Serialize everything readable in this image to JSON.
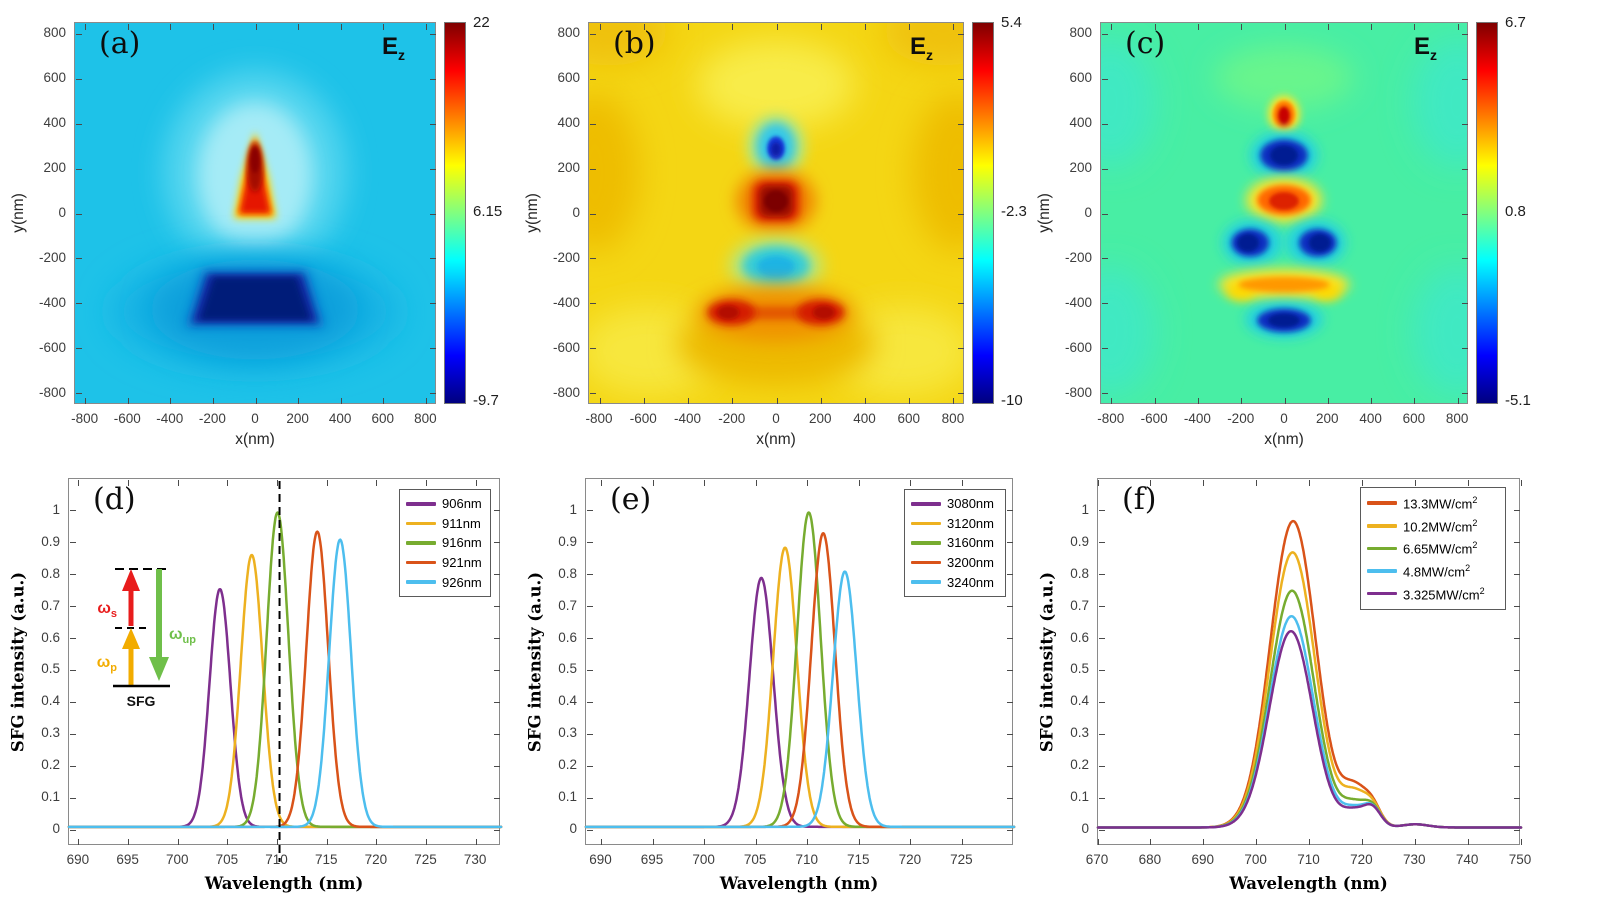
{
  "chart_data": [
    {
      "id": "a",
      "type": "heatmap",
      "letter": "(a)",
      "field": {
        "base": "E",
        "sub": "z"
      },
      "xlabel": "x(nm)",
      "ylabel": "y(nm)",
      "xlim": [
        -850,
        850
      ],
      "ylim": [
        -850,
        850
      ],
      "xticks": [
        -800,
        -600,
        -400,
        -200,
        0,
        200,
        400,
        600,
        800
      ],
      "yticks": [
        800,
        600,
        400,
        200,
        0,
        -200,
        -400,
        -600,
        -800
      ],
      "colorbar": {
        "max": "22",
        "mid": "6.15",
        "min": "-9.7"
      },
      "colormap": "jet",
      "background_color": "#1ec2e8",
      "features": [
        "strong positive (red) tip-shaped lobe centered at x=0 from y=0 to y=350",
        "strong negative (dark blue) trapezoidal lobe centered at x=0 from y=-260 to y=-500",
        "uniform cyan background near field value 0"
      ]
    },
    {
      "id": "b",
      "type": "heatmap",
      "letter": "(b)",
      "field": {
        "base": "E",
        "sub": "z"
      },
      "xlabel": "x(nm)",
      "ylabel": "y(nm)",
      "xlim": [
        -850,
        850
      ],
      "ylim": [
        -850,
        850
      ],
      "xticks": [
        -800,
        -600,
        -400,
        -200,
        0,
        200,
        400,
        600,
        800
      ],
      "yticks": [
        800,
        600,
        400,
        200,
        0,
        -200,
        -400,
        -600,
        -800
      ],
      "colorbar": {
        "max": "5.4",
        "mid": "-2.3",
        "min": "-10"
      },
      "colormap": "jet",
      "background_color": "#f4d614",
      "features": [
        "small negative (blue) spot near (0, 300)",
        "strong positive (dark red) lobe near (0, 50)",
        "negative (cyan) lobe near (0, -230)",
        "positive (red) bow-tie pair near (-200, -450) and (200, -450)",
        "yellow background"
      ]
    },
    {
      "id": "c",
      "type": "heatmap",
      "letter": "(c)",
      "field": {
        "base": "E",
        "sub": "z"
      },
      "xlabel": "x(nm)",
      "ylabel": "y(nm)",
      "xlim": [
        -850,
        850
      ],
      "ylim": [
        -850,
        850
      ],
      "xticks": [
        -800,
        -600,
        -400,
        -200,
        0,
        200,
        400,
        600,
        800
      ],
      "yticks": [
        800,
        600,
        400,
        200,
        0,
        -200,
        -400,
        -600,
        -800
      ],
      "colorbar": {
        "max": "6.7",
        "mid": "0.8",
        "min": "-5.1"
      },
      "colormap": "jet",
      "background_color": "#48eea4",
      "features": [
        "small positive (red) spot near (0, 440)",
        "negative (blue) lobe near (0, 260)",
        "positive (orange-red) lobe near (0, 60)",
        "two negative (blue) lobes near (-150, -130) and (150, -130)",
        "positive (yellow-orange) band near (0, -320)",
        "negative (blue) lobe near (0, -480)",
        "green background"
      ]
    },
    {
      "id": "d",
      "type": "line",
      "letter": "(d)",
      "xlabel": "Wavelength (nm)",
      "ylabel": "SFG intensity (a.u.)",
      "xlim": [
        689,
        732.5
      ],
      "ylim": [
        -0.05,
        1.1
      ],
      "xticks": [
        690,
        695,
        700,
        705,
        710,
        715,
        720,
        725,
        730
      ],
      "yticks": [
        0,
        0.1,
        0.2,
        0.3,
        0.4,
        0.5,
        0.6,
        0.7,
        0.8,
        0.9,
        1
      ],
      "dashed_x": 710.2,
      "baseline": 0.01,
      "legend_position": "top-right",
      "series": [
        {
          "name": "906nm",
          "sup": "",
          "color": "#7E2F8E",
          "peaks": [
            {
              "c": 704.2,
              "h": 0.745,
              "w": 1.05
            }
          ]
        },
        {
          "name": "911nm",
          "sup": "",
          "color": "#EDB120",
          "peaks": [
            {
              "c": 707.4,
              "h": 0.852,
              "w": 1.1
            }
          ]
        },
        {
          "name": "916nm",
          "sup": "",
          "color": "#77AC30",
          "peaks": [
            {
              "c": 710.0,
              "h": 0.985,
              "w": 1.1
            }
          ]
        },
        {
          "name": "921nm",
          "sup": "",
          "color": "#D95319",
          "peaks": [
            {
              "c": 714.0,
              "h": 0.925,
              "w": 1.1
            }
          ]
        },
        {
          "name": "926nm",
          "sup": "",
          "color": "#4DBEEE",
          "peaks": [
            {
              "c": 716.3,
              "h": 0.9,
              "w": 1.1
            }
          ]
        }
      ],
      "inset": {
        "ws": {
          "base": "ω",
          "sub": "s"
        },
        "wp": {
          "base": "ω",
          "sub": "p"
        },
        "wup": {
          "base": "ω",
          "sub": "up"
        },
        "sfg": "SFG",
        "colors": {
          "ws": "#e81c1c",
          "wp": "#f2ac00",
          "wup": "#6fbf4a"
        }
      }
    },
    {
      "id": "e",
      "type": "line",
      "letter": "(e)",
      "xlabel": "Wavelength (nm)",
      "ylabel": "SFG intensity (a.u.)",
      "xlim": [
        688.5,
        730
      ],
      "ylim": [
        -0.05,
        1.1
      ],
      "xticks": [
        690,
        695,
        700,
        705,
        710,
        715,
        720,
        725
      ],
      "yticks": [
        0,
        0.1,
        0.2,
        0.3,
        0.4,
        0.5,
        0.6,
        0.7,
        0.8,
        0.9,
        1
      ],
      "baseline": 0.01,
      "legend_position": "top-right",
      "series": [
        {
          "name": "3080nm",
          "sup": "",
          "color": "#7E2F8E",
          "peaks": [
            {
              "c": 705.5,
              "h": 0.78,
              "w": 1.15
            }
          ]
        },
        {
          "name": "3120nm",
          "sup": "",
          "color": "#EDB120",
          "peaks": [
            {
              "c": 707.8,
              "h": 0.875,
              "w": 1.15
            }
          ]
        },
        {
          "name": "3160nm",
          "sup": "",
          "color": "#77AC30",
          "peaks": [
            {
              "c": 710.1,
              "h": 0.985,
              "w": 1.15
            }
          ]
        },
        {
          "name": "3200nm",
          "sup": "",
          "color": "#D95319",
          "peaks": [
            {
              "c": 711.5,
              "h": 0.92,
              "w": 1.15
            }
          ]
        },
        {
          "name": "3240nm",
          "sup": "",
          "color": "#4DBEEE",
          "peaks": [
            {
              "c": 713.6,
              "h": 0.8,
              "w": 1.15
            }
          ]
        }
      ]
    },
    {
      "id": "f",
      "type": "line",
      "letter": "(f)",
      "xlabel": "Wavelength (nm)",
      "ylabel": "SFG intensity (a.u.)",
      "xlim": [
        670,
        750
      ],
      "ylim": [
        -0.05,
        1.1
      ],
      "xticks": [
        670,
        680,
        690,
        700,
        710,
        720,
        730,
        740,
        750
      ],
      "yticks": [
        0,
        0.1,
        0.2,
        0.3,
        0.4,
        0.5,
        0.6,
        0.7,
        0.8,
        0.9,
        1
      ],
      "baseline": 0.008,
      "legend_position": "top-right",
      "series": [
        {
          "name": "13.3MW/cm",
          "sup": "2",
          "color": "#D95319",
          "peaks": [
            {
              "c": 706.9,
              "h": 0.96,
              "w": 4.3
            },
            {
              "c": 718.6,
              "h": 0.115,
              "w": 2.4
            },
            {
              "c": 722,
              "h": 0.05,
              "w": 1.6
            },
            {
              "c": 730,
              "h": 0.01,
              "w": 2.5
            }
          ]
        },
        {
          "name": "10.2MW/cm",
          "sup": "2",
          "color": "#EDB120",
          "peaks": [
            {
              "c": 706.8,
              "h": 0.862,
              "w": 4.25
            },
            {
              "c": 718.6,
              "h": 0.1,
              "w": 2.4
            },
            {
              "c": 722,
              "h": 0.05,
              "w": 1.6
            },
            {
              "c": 730,
              "h": 0.01,
              "w": 2.5
            }
          ]
        },
        {
          "name": "6.65MW/cm",
          "sup": "2",
          "color": "#77AC30",
          "peaks": [
            {
              "c": 706.7,
              "h": 0.742,
              "w": 4.2
            },
            {
              "c": 718.6,
              "h": 0.07,
              "w": 2.4
            },
            {
              "c": 722,
              "h": 0.05,
              "w": 1.6
            },
            {
              "c": 730,
              "h": 0.01,
              "w": 2.5
            }
          ]
        },
        {
          "name": "4.8MW/cm",
          "sup": "2",
          "color": "#4DBEEE",
          "peaks": [
            {
              "c": 706.6,
              "h": 0.662,
              "w": 4.15
            },
            {
              "c": 718.6,
              "h": 0.055,
              "w": 2.4
            },
            {
              "c": 722,
              "h": 0.05,
              "w": 1.6
            },
            {
              "c": 730,
              "h": 0.01,
              "w": 2.5
            }
          ]
        },
        {
          "name": "3.325MW/cm",
          "sup": "2",
          "color": "#7E2F8E",
          "peaks": [
            {
              "c": 706.5,
              "h": 0.615,
              "w": 4.1
            },
            {
              "c": 718.6,
              "h": 0.05,
              "w": 2.4
            },
            {
              "c": 722,
              "h": 0.05,
              "w": 1.6
            },
            {
              "c": 730,
              "h": 0.01,
              "w": 2.5
            }
          ]
        }
      ]
    }
  ]
}
